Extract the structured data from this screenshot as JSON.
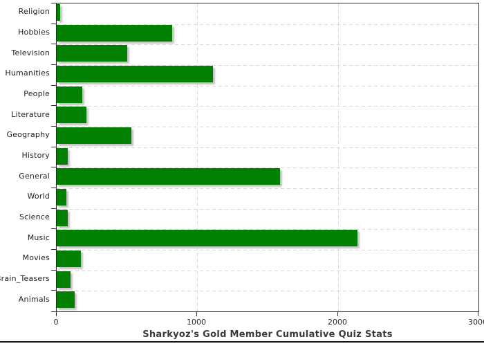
{
  "chart_data": {
    "type": "bar",
    "orientation": "horizontal",
    "title": "Sharkyoz's Gold Member Cumulative Quiz Stats",
    "categories": [
      "Religion",
      "Hobbies",
      "Television",
      "Humanities",
      "People",
      "Literature",
      "Geography",
      "History",
      "General",
      "World",
      "Science",
      "Music",
      "Movies",
      "Brain_Teasers",
      "Animals"
    ],
    "values": [
      25,
      820,
      500,
      1110,
      180,
      210,
      530,
      80,
      1590,
      70,
      80,
      2140,
      170,
      100,
      130
    ],
    "xlabel": "",
    "ylabel": "",
    "xlim": [
      0,
      3000
    ],
    "xticks": [
      0,
      1000,
      2000,
      3000
    ],
    "xtick_labels": [
      "0",
      "1000",
      "2000",
      "3000"
    ],
    "grid": "dashed",
    "legend": "none",
    "bar_color": "#028002",
    "bar_shadow_color": "#c4c4c4",
    "grid_color": "#d9d9d9",
    "axis_color": "#2b2b2b",
    "title_color": "#3a3a3a",
    "background": "#ffffff"
  }
}
